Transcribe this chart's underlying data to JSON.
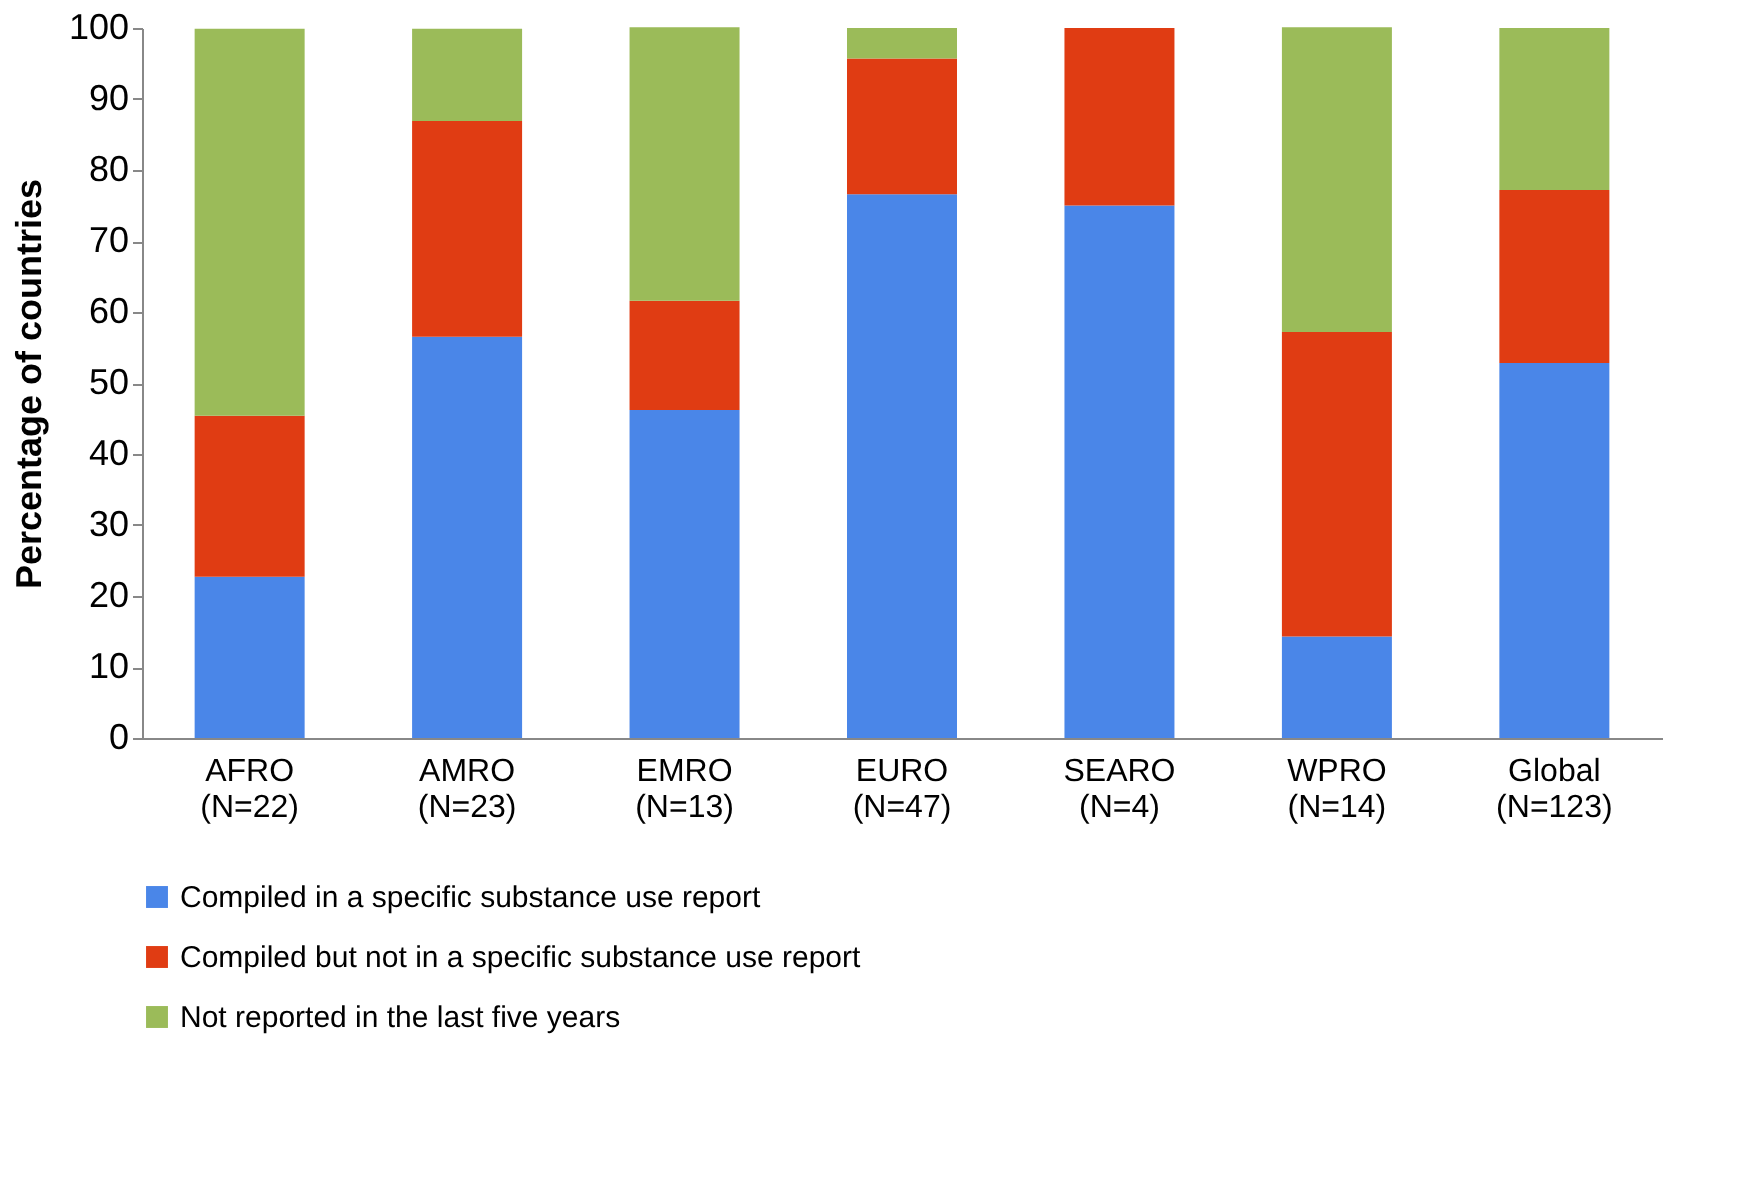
{
  "chart_data": {
    "type": "bar",
    "stacked": true,
    "ylabel": "Percentage of countries",
    "categories": [
      "AFRO\n(N=22)",
      "AMRO\n(N=23)",
      "EMRO\n(N=13)",
      "EURO\n(N=47)",
      "SEARO\n(N=4)",
      "WPRO\n(N=14)",
      "Global\n(N=123)"
    ],
    "series": [
      {
        "name": "Compiled in a specific substance use report",
        "color": "#4a86e8",
        "values": [
          22.7,
          56.5,
          46.2,
          76.6,
          75.0,
          14.3,
          52.8
        ]
      },
      {
        "name": "Compiled but not in a specific substance use report",
        "color": "#e03c13",
        "values": [
          22.7,
          30.4,
          15.4,
          19.1,
          25.0,
          42.9,
          24.4
        ]
      },
      {
        "name": "Not reported in the last five years",
        "color": "#9bbb59",
        "values": [
          54.5,
          13.0,
          38.5,
          4.3,
          0.0,
          42.9,
          22.8
        ]
      }
    ],
    "ylim": [
      0,
      100
    ],
    "yticks": [
      0,
      10,
      20,
      30,
      40,
      50,
      60,
      70,
      80,
      90,
      100
    ],
    "grid": false,
    "legend": "bottom"
  }
}
